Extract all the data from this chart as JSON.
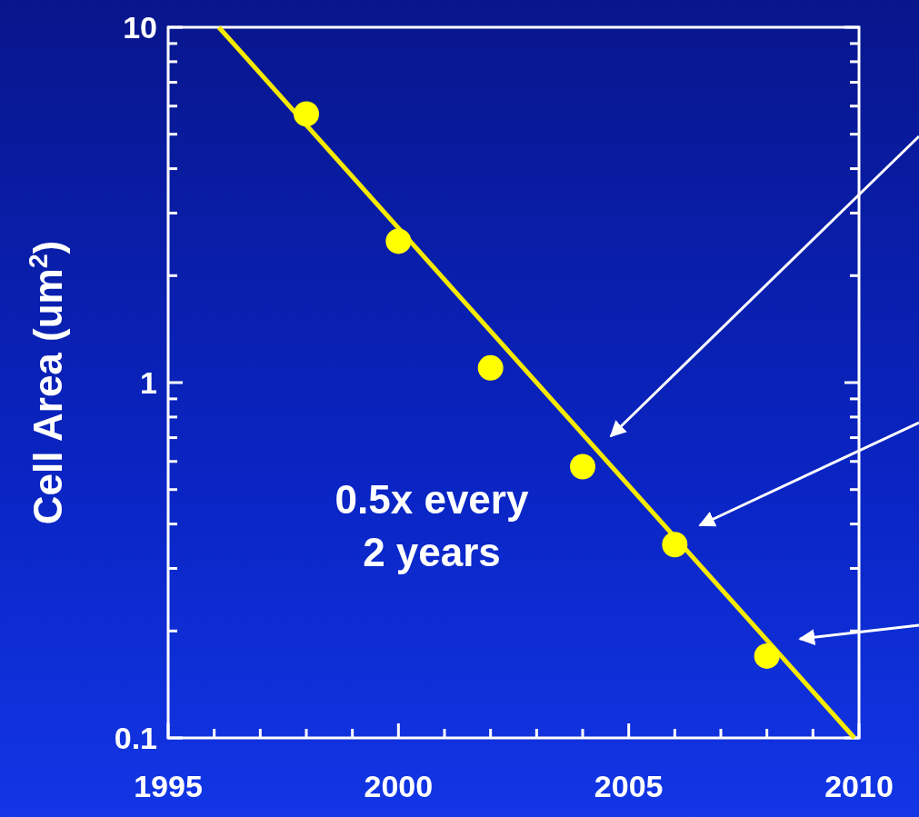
{
  "chart_data": {
    "type": "scatter",
    "ylabel": "Cell Area (um$^{2}$)",
    "log": "y",
    "grid": false,
    "marker": "circle",
    "xlim": [
      1995,
      2010
    ],
    "ylim": [
      0.1,
      10
    ],
    "xticks": [
      1995,
      {
        "value": 1996,
        "label": null
      },
      {
        "value": 1997,
        "label": null
      },
      {
        "value": 1998,
        "label": null
      },
      {
        "value": 1999,
        "label": null
      },
      2000,
      {
        "value": 2001,
        "label": null
      },
      {
        "value": 2002,
        "label": null
      },
      {
        "value": 2003,
        "label": null
      },
      {
        "value": 2004,
        "label": null
      },
      2005,
      {
        "value": 2006,
        "label": null
      },
      {
        "value": 2007,
        "label": null
      },
      {
        "value": 2008,
        "label": null
      },
      {
        "value": 2009,
        "label": null
      },
      2010
    ],
    "yticks": [
      0.1,
      {
        "value": 0.2,
        "label": null
      },
      {
        "value": 0.3,
        "label": null
      },
      {
        "value": 0.4,
        "label": null
      },
      {
        "value": 0.5,
        "label": null
      },
      {
        "value": 0.6,
        "label": null
      },
      {
        "value": 0.7,
        "label": null
      },
      {
        "value": 0.8,
        "label": null
      },
      {
        "value": 0.9,
        "label": null
      },
      1,
      {
        "value": 2,
        "label": null
      },
      {
        "value": 3,
        "label": null
      },
      {
        "value": 4,
        "label": null
      },
      {
        "value": 5,
        "label": null
      },
      {
        "value": 6,
        "label": null
      },
      {
        "value": 7,
        "label": null
      },
      {
        "value": 8,
        "label": null
      },
      {
        "value": 9,
        "label": null
      },
      10
    ],
    "series": [
      {
        "type": "line",
        "marker": "none",
        "color": "#f5ea00",
        "x": [
          1996.1,
          2009.9
        ],
        "values": [
          10,
          0.1
        ]
      },
      {
        "color": "#ffff00",
        "x": [
          1998,
          2000,
          2002,
          2004,
          2006,
          2008
        ],
        "values": [
          5.7,
          2.5,
          1.1,
          0.58,
          0.35,
          0.17
        ]
      }
    ],
    "annotations": [
      "0.5x every\n2 years"
    ]
  }
}
